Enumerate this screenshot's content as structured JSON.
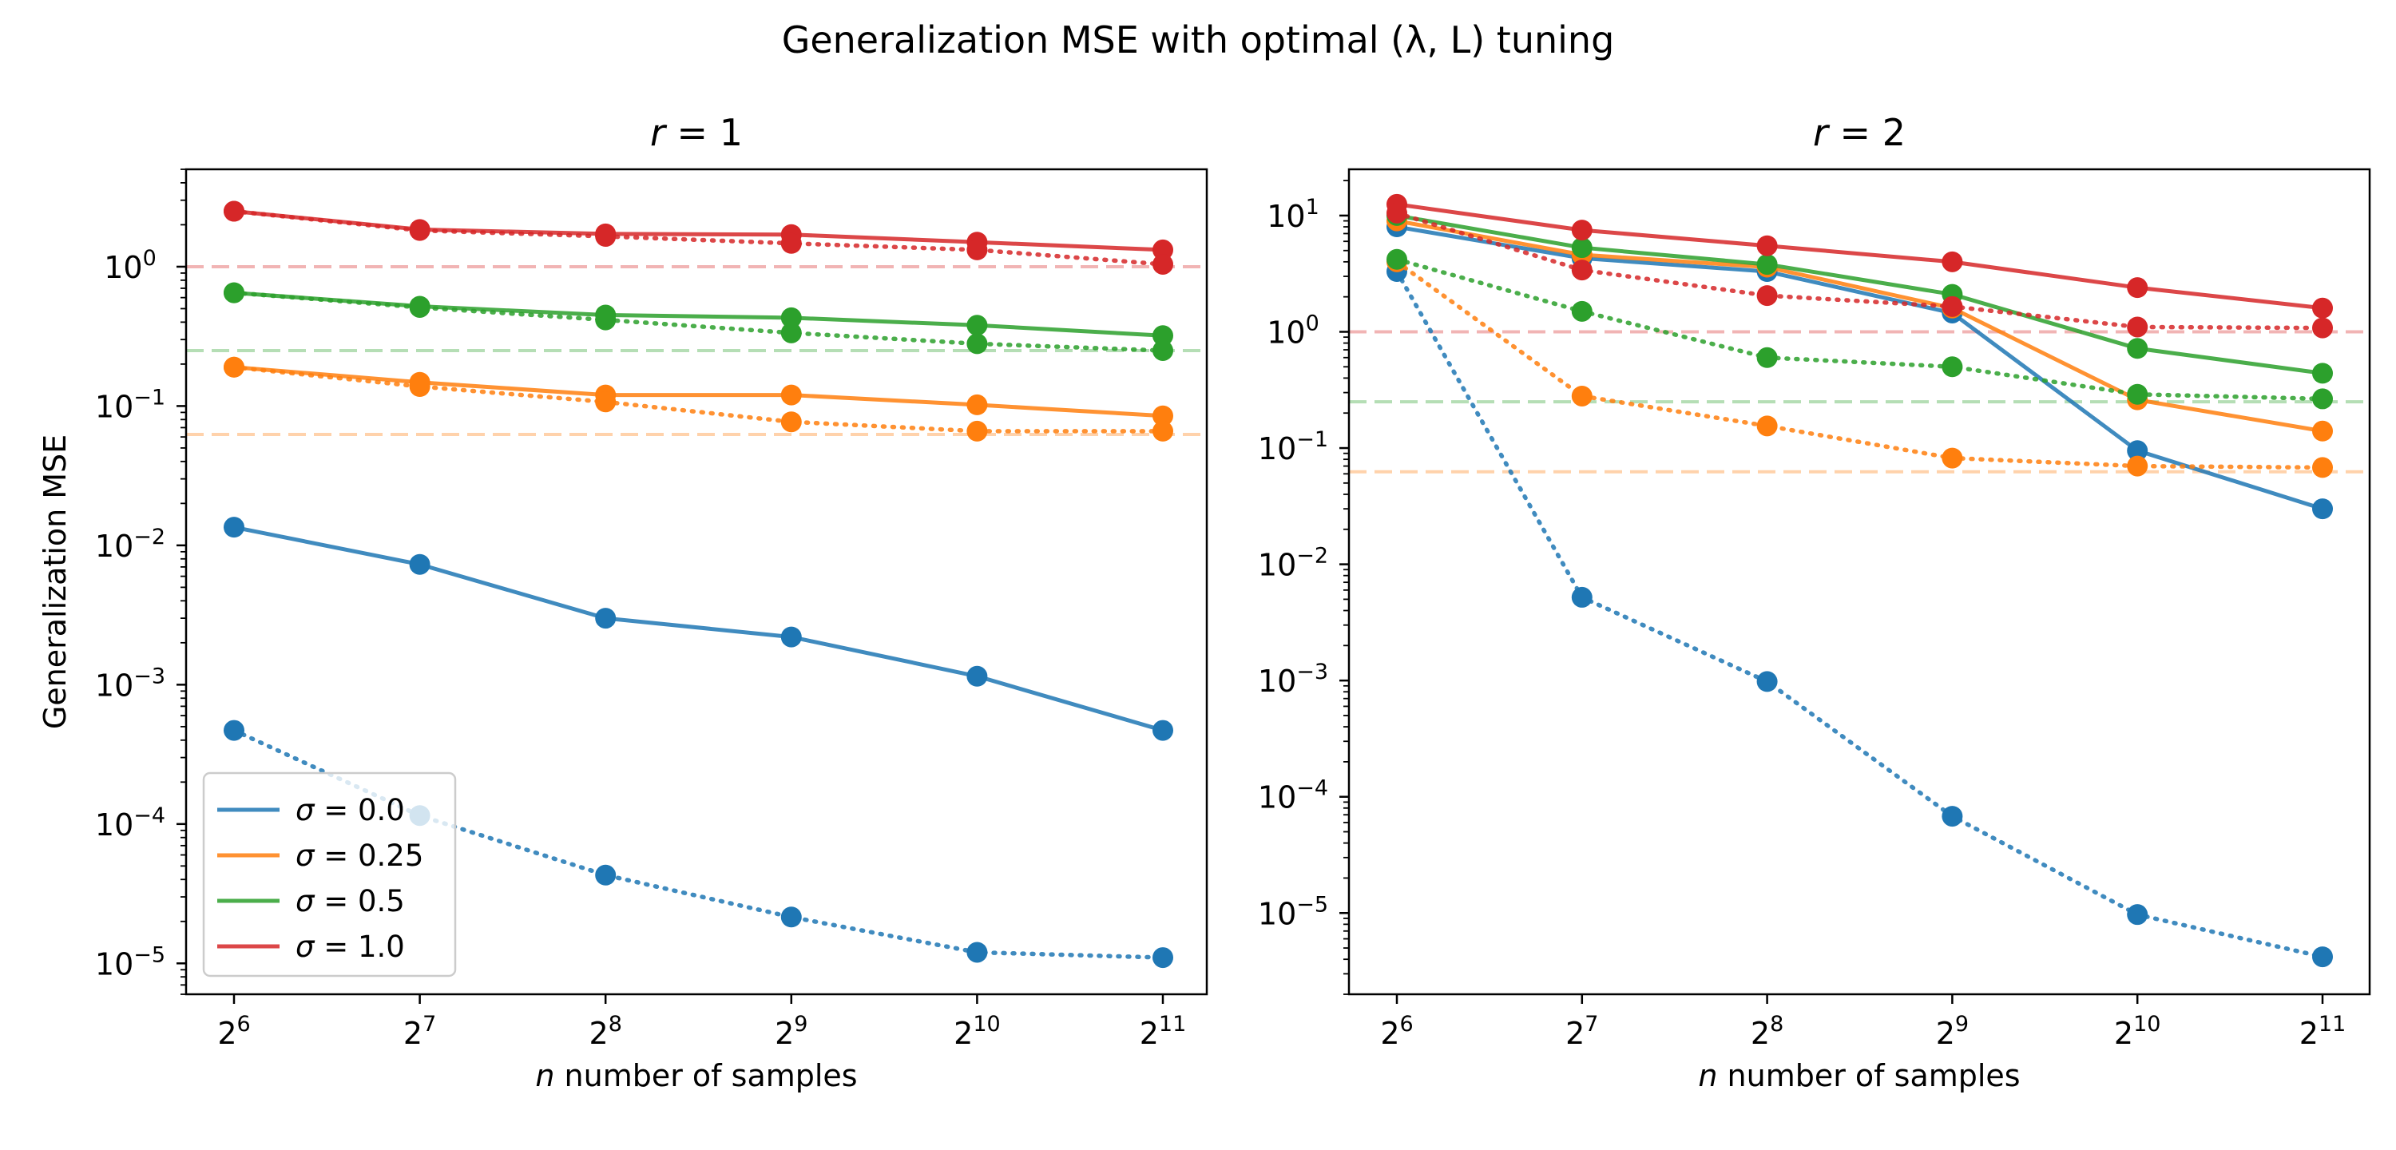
{
  "figure": {
    "title": "Generalization MSE with optimal (λ, L) tuning"
  },
  "chart_data": [
    {
      "type": "line",
      "title": "r = 1",
      "xlabel": "n number of samples",
      "ylabel": "Generalization MSE",
      "xscale": "log2",
      "yscale": "log",
      "x": [
        64,
        128,
        256,
        512,
        1024,
        2048
      ],
      "x_tick_labels": [
        "2^6",
        "2^7",
        "2^8",
        "2^9",
        "2^10",
        "2^11"
      ],
      "y_tick_labels": [
        "10^-5",
        "10^-4",
        "10^-3",
        "10^-2",
        "10^-1",
        "10^0"
      ],
      "ylim": [
        6e-06,
        5
      ],
      "legend": "lower-left",
      "series": [
        {
          "name": "σ = 0.0",
          "line": "solid",
          "color": "#1f77b4",
          "values": [
            0.0135,
            0.0073,
            0.003,
            0.0022,
            0.00115,
            0.00047
          ]
        },
        {
          "line": "dotted",
          "color": "#1f77b4",
          "values": [
            0.00047,
            0.000115,
            4.3e-05,
            2.15e-05,
            1.2e-05,
            1.1e-05
          ]
        },
        {
          "name": "σ = 0.25",
          "line": "solid",
          "color": "#ff7f0e",
          "values": [
            0.19,
            0.148,
            0.12,
            0.12,
            0.102,
            0.085
          ]
        },
        {
          "line": "dotted",
          "color": "#ff7f0e",
          "values": [
            0.19,
            0.138,
            0.107,
            0.077,
            0.066,
            0.066
          ]
        },
        {
          "name": "σ = 0.5",
          "line": "solid",
          "color": "#2ca02c",
          "values": [
            0.65,
            0.52,
            0.45,
            0.43,
            0.38,
            0.32
          ]
        },
        {
          "line": "dotted",
          "color": "#2ca02c",
          "values": [
            0.65,
            0.51,
            0.415,
            0.335,
            0.28,
            0.25
          ]
        },
        {
          "name": "σ = 1.0",
          "line": "solid",
          "color": "#d62728",
          "values": [
            2.5,
            1.85,
            1.72,
            1.7,
            1.5,
            1.32
          ]
        },
        {
          "line": "dotted",
          "color": "#d62728",
          "values": [
            2.5,
            1.82,
            1.65,
            1.47,
            1.32,
            1.04
          ]
        }
      ],
      "reference_lines": [
        {
          "y": 1.0,
          "color": "#d62728"
        },
        {
          "y": 0.25,
          "color": "#2ca02c"
        },
        {
          "y": 0.0625,
          "color": "#ff7f0e"
        }
      ]
    },
    {
      "type": "line",
      "title": "r = 2",
      "xlabel": "n number of samples",
      "ylabel": "",
      "xscale": "log2",
      "yscale": "log",
      "x": [
        64,
        128,
        256,
        512,
        1024,
        2048
      ],
      "x_tick_labels": [
        "2^6",
        "2^7",
        "2^8",
        "2^9",
        "2^10",
        "2^11"
      ],
      "y_tick_labels": [
        "10^-5",
        "10^-4",
        "10^-3",
        "10^-2",
        "10^-1",
        "10^0",
        "10^1"
      ],
      "ylim": [
        2e-06,
        25
      ],
      "series": [
        {
          "name": "σ = 0.0",
          "line": "solid",
          "color": "#1f77b4",
          "values": [
            8.0,
            4.3,
            3.3,
            1.45,
            0.095,
            0.03
          ]
        },
        {
          "line": "dotted",
          "color": "#1f77b4",
          "values": [
            3.3,
            0.0052,
            0.00098,
            6.8e-05,
            9.7e-06,
            4.2e-06
          ]
        },
        {
          "name": "σ = 0.25",
          "line": "solid",
          "color": "#ff7f0e",
          "values": [
            9.0,
            4.6,
            3.6,
            1.6,
            0.26,
            0.14
          ]
        },
        {
          "line": "dotted",
          "color": "#ff7f0e",
          "values": [
            4.0,
            0.28,
            0.155,
            0.082,
            0.07,
            0.068
          ]
        },
        {
          "name": "σ = 0.5",
          "line": "solid",
          "color": "#2ca02c",
          "values": [
            10.0,
            5.3,
            3.8,
            2.1,
            0.72,
            0.44
          ]
        },
        {
          "line": "dotted",
          "color": "#2ca02c",
          "values": [
            4.2,
            1.5,
            0.6,
            0.5,
            0.29,
            0.265
          ]
        },
        {
          "name": "σ = 1.0",
          "line": "solid",
          "color": "#d62728",
          "values": [
            12.5,
            7.5,
            5.5,
            4.0,
            2.4,
            1.6
          ]
        },
        {
          "line": "dotted",
          "color": "#d62728",
          "values": [
            10.5,
            3.4,
            2.05,
            1.65,
            1.1,
            1.08
          ]
        }
      ],
      "reference_lines": [
        {
          "y": 1.0,
          "color": "#d62728"
        },
        {
          "y": 0.25,
          "color": "#2ca02c"
        },
        {
          "y": 0.0625,
          "color": "#ff7f0e"
        }
      ]
    }
  ]
}
